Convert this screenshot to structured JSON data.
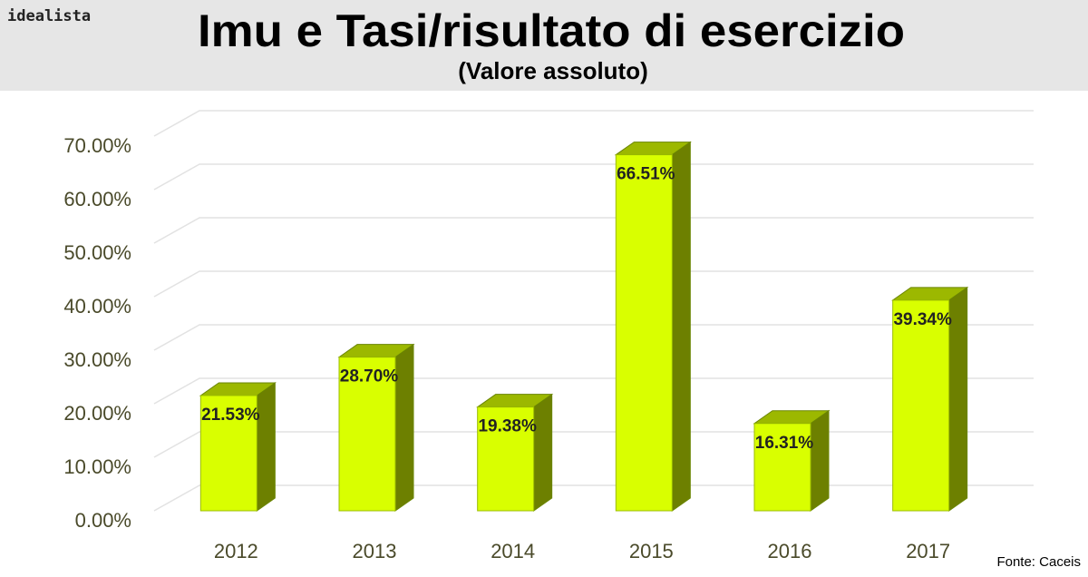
{
  "brand": "idealista",
  "source": "Fonte: Caceis",
  "chart_data": {
    "type": "bar3d",
    "title": "Imu e Tasi/risultato di esercizio",
    "subtitle": "(Valore assoluto)",
    "categories": [
      "2012",
      "2013",
      "2014",
      "2015",
      "2016",
      "2017"
    ],
    "values": [
      21.53,
      28.7,
      19.38,
      66.51,
      16.31,
      39.34
    ],
    "value_labels": [
      "21.53%",
      "28.70%",
      "19.38%",
      "66.51%",
      "16.31%",
      "39.34%"
    ],
    "color": "#d9ff00",
    "ylim": [
      0,
      70
    ],
    "yticks": [
      {
        "value": 0,
        "label": "0.00%"
      },
      {
        "value": 10,
        "label": "10.00%"
      },
      {
        "value": 20,
        "label": "20.00%"
      },
      {
        "value": 30,
        "label": "30.00%"
      },
      {
        "value": 40,
        "label": "40.00%"
      },
      {
        "value": 50,
        "label": "50.00%"
      },
      {
        "value": 60,
        "label": "60.00%"
      },
      {
        "value": 70,
        "label": "70.00%"
      }
    ],
    "grid": true
  }
}
